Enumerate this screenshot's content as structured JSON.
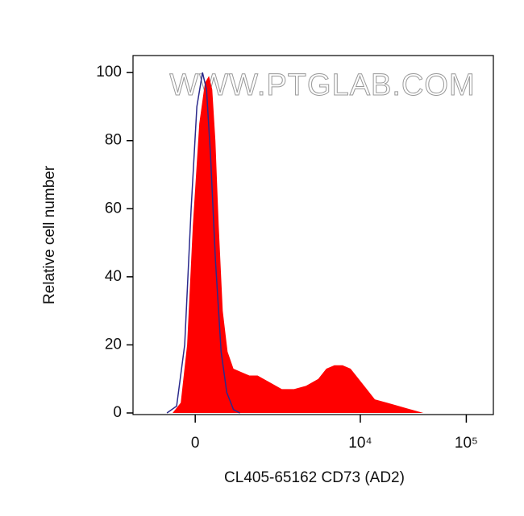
{
  "chart_data": {
    "type": "histogram-overlay",
    "watermark": "WWW.PTGLAB.COM",
    "xlabel": "CL405-65162 CD73 (AD2)",
    "ylabel": "Relative cell number",
    "xscale": "biexponential",
    "xlim": [
      -1000,
      180000
    ],
    "xticks": [
      0,
      {
        "value": 10000,
        "label": "10⁴"
      },
      {
        "value": 100000,
        "label": "10⁵"
      }
    ],
    "ylim": [
      0,
      105
    ],
    "yticks": [
      0,
      20,
      40,
      60,
      80,
      100
    ],
    "series": [
      {
        "color": "#ff0000",
        "fill": true,
        "x": [
          -284,
          -178,
          -98,
          -29,
          49,
          118,
          168,
          210,
          251,
          295,
          352,
          423,
          515,
          654,
          815,
          1003,
          1343,
          1776,
          2337,
          3058,
          3991,
          4767,
          5689,
          6793,
          8097,
          9657,
          11516,
          13731,
          17871,
          23255,
          30248,
          39405
        ],
        "values": [
          0,
          3,
          20,
          55,
          85,
          97,
          99,
          95,
          80,
          55,
          30,
          18,
          13,
          12,
          11,
          11,
          9,
          7,
          7,
          8,
          10,
          13,
          14,
          14,
          13,
          10,
          7,
          4,
          3,
          2,
          1,
          0
        ]
      },
      {
        "color": "#2b2a8c",
        "fill": false,
        "x": [
          -363,
          -230,
          -128,
          -49,
          20,
          88,
          138,
          189,
          251,
          329,
          411,
          515,
          625
        ],
        "values": [
          0,
          2,
          20,
          60,
          90,
          100,
          95,
          75,
          45,
          18,
          6,
          1,
          0
        ]
      }
    ]
  }
}
